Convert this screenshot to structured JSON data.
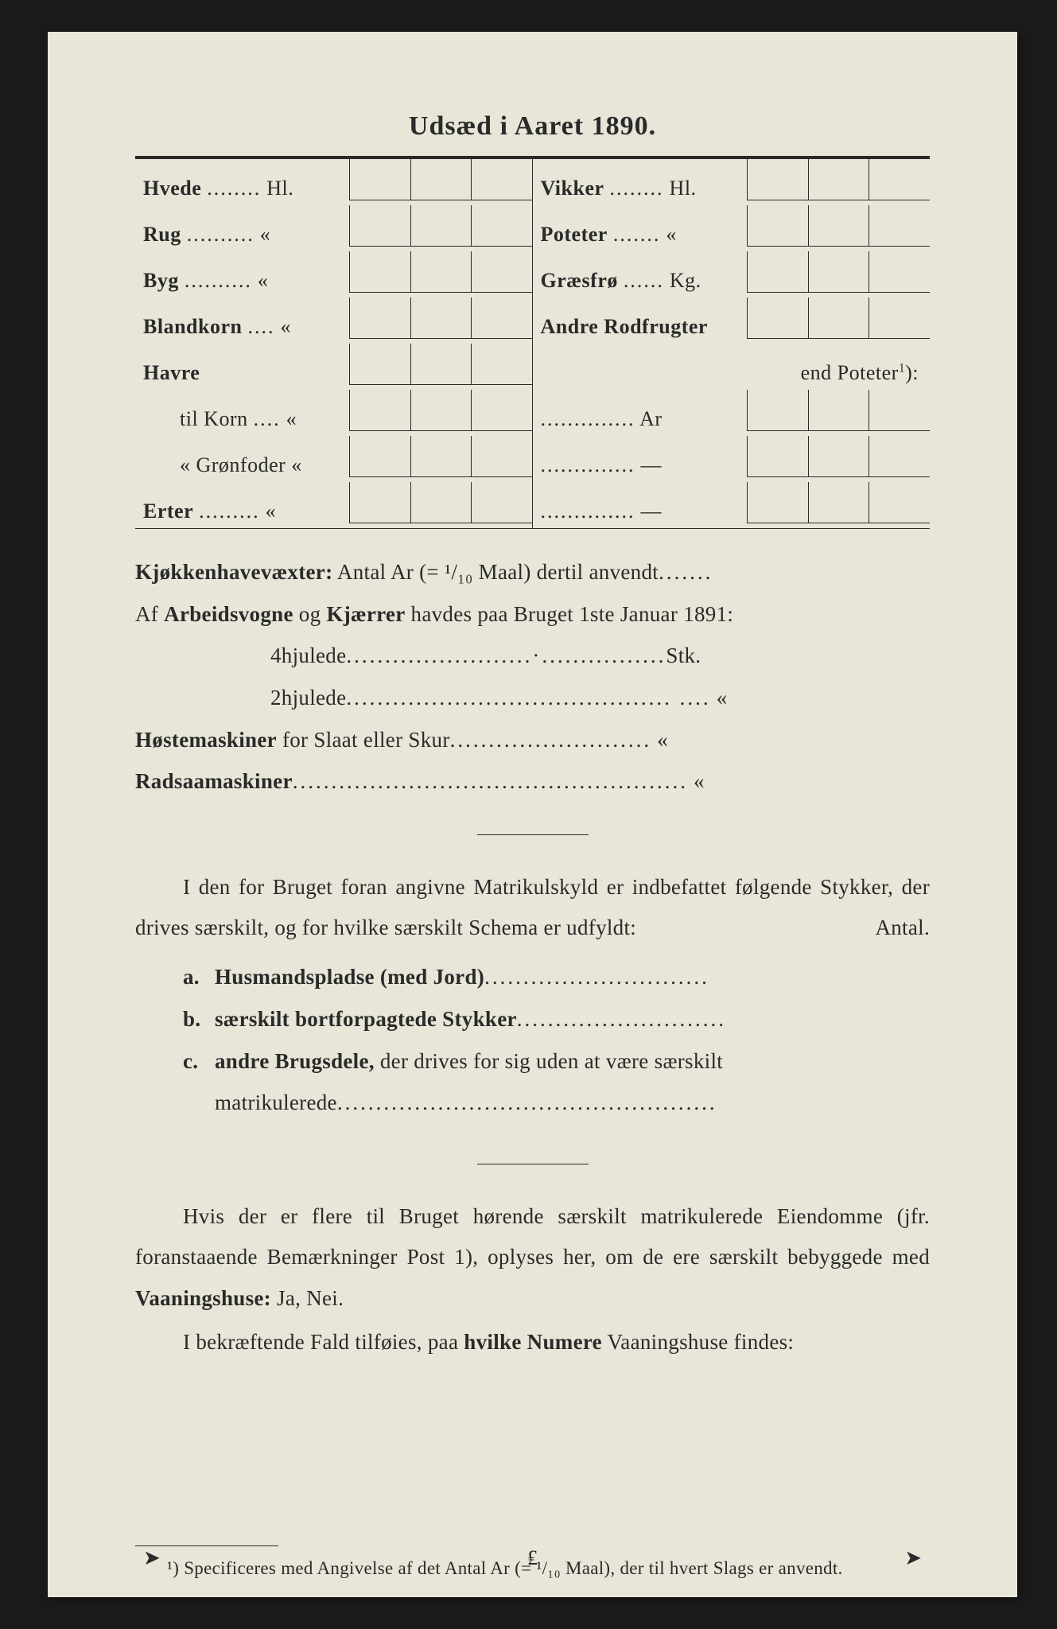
{
  "title": "Udsæd i Aaret 1890.",
  "crops": {
    "left": [
      {
        "label_bold": "Hvede",
        "dots": "........",
        "unit": "Hl."
      },
      {
        "label_bold": "Rug",
        "dots": "..........",
        "unit": "«"
      },
      {
        "label_bold": "Byg",
        "dots": "..........",
        "unit": "«"
      },
      {
        "label_bold": "Blandkorn",
        "dots": "....",
        "unit": "«"
      },
      {
        "label_bold": "Havre",
        "dots": "",
        "unit": ""
      },
      {
        "label_prefix": "",
        "label_plain": "til Korn",
        "dots": "....",
        "unit": "«",
        "indent": true
      },
      {
        "label_prefix": "«  ",
        "label_plain": "Grønfoder",
        "dots": "",
        "unit": "«",
        "indent": true
      },
      {
        "label_bold": "Erter",
        "dots": ".........",
        "unit": "«"
      }
    ],
    "right": [
      {
        "label_bold": "Vikker",
        "dots": "........",
        "unit": "Hl."
      },
      {
        "label_bold": "Poteter",
        "dots": ".......",
        "unit": "«"
      },
      {
        "label_bold": "Græsfrø",
        "dots": "......",
        "unit": "Kg."
      },
      {
        "label_bold": "Andre Rodfrugter",
        "dots": "",
        "unit": ""
      },
      {
        "label_plain_right": "end Poteter¹):",
        "nocells": true
      },
      {
        "label_plain": "",
        "dots": "..............",
        "unit": "Ar"
      },
      {
        "label_plain": "",
        "dots": "..............",
        "unit": "—"
      },
      {
        "label_plain": "",
        "dots": "..............",
        "unit": "—"
      }
    ]
  },
  "lines": {
    "kjokken": {
      "pre": "Kjøkkenhavevæxter:",
      "rest": " Antal Ar (= ¹/₁₀ Maal) dertil anvendt",
      "dots": "......."
    },
    "arbeid_pre": "Af ",
    "arbeid_b1": "Arbeidsvogne",
    "arbeid_mid": " og ",
    "arbeid_b2": "Kjærrer",
    "arbeid_rest": " havdes paa Bruget 1ste Januar 1891:",
    "hjul4": {
      "label": "4hjulede",
      "dots": "........................·................",
      "unit": "Stk."
    },
    "hjul2": {
      "label": "2hjulede",
      "dots": ".......................................... ....",
      "unit": "«"
    },
    "hoste": {
      "b": "Høstemaskiner",
      "rest": " for Slaat eller Skur",
      "dots": "..........................",
      "unit": "«"
    },
    "rad": {
      "b": "Radsaamaskiner",
      "dots": "...................................................",
      "unit": "«"
    }
  },
  "para1": {
    "text_a": "I den for Bruget foran angivne Matrikulskyld er indbefattet følgende Stykker, der drives særskilt, og for hvilke særskilt Schema er udfyldt:",
    "antal": "Antal."
  },
  "list": {
    "a": {
      "key": "a.",
      "b": "Husmandspladse (med Jord)",
      "dots": "............................."
    },
    "b": {
      "key": "b.",
      "b": "særskilt bortforpagtede Stykker",
      "dots": "..........................."
    },
    "c": {
      "key": "c.",
      "b": "andre Brugsdele,",
      "rest": " der drives for sig uden at være særskilt matrikulerede",
      "dots": "................................................."
    }
  },
  "para2": {
    "line1": "Hvis der er flere til Bruget hørende særskilt matrikulerede Eiendomme (jfr. foranstaaende Bemærkninger Post 1), oplyses her, om de ere særskilt bebyggede med ",
    "b1": "Vaaningshuse:",
    "tail1": " Ja, Nei.",
    "line2a": "I bekræftende Fald tilføies, paa ",
    "b2": "hvilke Numere",
    "line2b": " Vaaningshuse findes:"
  },
  "footnote": "¹) Specificeres med Angivelse af det Antal Ar (= ¹/₁₀ Maal), der til hvert Slags er anvendt.",
  "colors": {
    "paper": "#e8e6d8",
    "ink": "#2a2a2a",
    "frame": "#1a1a1a"
  }
}
